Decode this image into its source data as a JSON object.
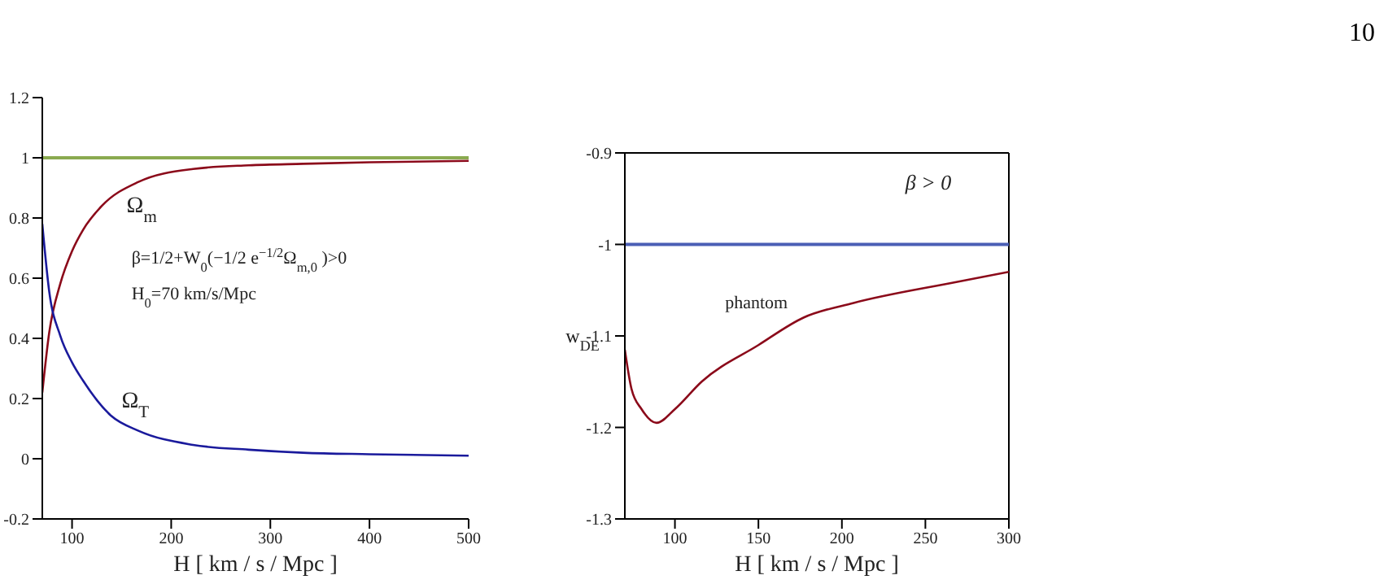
{
  "chart_data": [
    {
      "type": "line",
      "xlabel": "H [ km / s / Mpc ]",
      "xlim": [
        70,
        500
      ],
      "xticks": [
        100,
        200,
        300,
        400,
        500
      ],
      "ylim": [
        -0.2,
        1.2
      ],
      "yticks": [
        -0.2,
        0,
        0.2,
        0.4,
        0.6,
        0.8,
        1,
        1.2
      ],
      "series": [
        {
          "color": "#8b0a1a",
          "x": [
            70,
            77,
            88,
            100,
            111,
            130,
            167,
            222,
            278,
            333,
            400,
            500
          ],
          "values": [
            0.22,
            0.42,
            0.58,
            0.69,
            0.76,
            0.84,
            0.92,
            0.963,
            0.975,
            0.98,
            0.985,
            0.99
          ]
        },
        {
          "color": "#1a1a9c",
          "x": [
            70,
            77,
            88,
            100,
            111,
            139,
            167,
            222,
            278,
            333,
            400,
            500
          ],
          "values": [
            0.78,
            0.555,
            0.41,
            0.32,
            0.26,
            0.144,
            0.093,
            0.046,
            0.03,
            0.02,
            0.015,
            0.01
          ]
        }
      ],
      "ref_lines": [
        {
          "axis": "y",
          "value": 1,
          "color": "#8aaa50"
        }
      ],
      "annotations": [
        "Ω$_{m}$",
        "Ω$_{T}$",
        "β=1/2+W$_{0}$(−1/2 e$^{−1/2}$Ω$_{m,0}$ )>0",
        "H$_{0}$=70 km/s/Mpc"
      ]
    },
    {
      "type": "line",
      "xlabel": "H [ km / s / Mpc ]",
      "ylabel": "w$_{DE}$",
      "xlim": [
        70,
        300
      ],
      "xticks": [
        100,
        150,
        200,
        250,
        300
      ],
      "ylim": [
        -1.3,
        -0.9
      ],
      "yticks": [
        -1.3,
        -1.2,
        -1.1,
        -1,
        -0.9
      ],
      "series": [
        {
          "color": "#8b0a1a",
          "x": [
            70,
            74,
            80,
            89,
            100,
            116,
            150,
            177,
            207,
            266,
            300
          ],
          "values": [
            -1.115,
            -1.158,
            -1.18,
            -1.195,
            -1.18,
            -1.15,
            -1.11,
            -1.08,
            -1.064,
            -1.042,
            -1.03
          ]
        }
      ],
      "ref_lines": [
        {
          "axis": "y",
          "value": -1,
          "color": "#4a5fb5"
        }
      ],
      "annotations": [
        "β > 0",
        "phantom",
        "10"
      ]
    }
  ]
}
